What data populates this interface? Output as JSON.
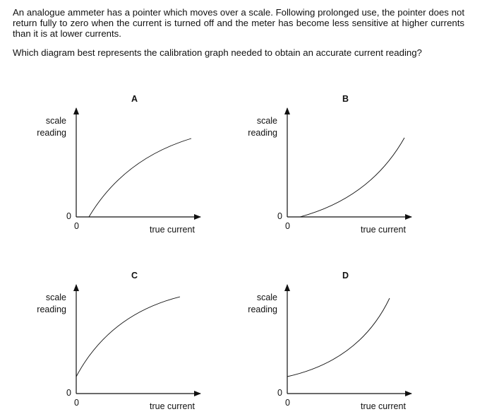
{
  "question": {
    "stem": "An analogue ammeter has a pointer which moves over a scale. Following prolonged use, the pointer does not return fully to zero when the current is turned off and the meter has become less sensitive at higher currents than it is at lower currents.",
    "prompt": "Which diagram best represents the calibration graph needed to obtain an accurate current reading?"
  },
  "options": [
    {
      "letter": "A",
      "y_label_1": "scale",
      "y_label_2": "reading",
      "x_label": "true current",
      "origin_y": "0",
      "origin_x": "0"
    },
    {
      "letter": "B",
      "y_label_1": "scale",
      "y_label_2": "reading",
      "x_label": "true current",
      "origin_y": "0",
      "origin_x": "0"
    },
    {
      "letter": "C",
      "y_label_1": "scale",
      "y_label_2": "reading",
      "x_label": "true current",
      "origin_y": "0",
      "origin_x": "0"
    },
    {
      "letter": "D",
      "y_label_1": "scale",
      "y_label_2": "reading",
      "x_label": "true current",
      "origin_y": "0",
      "origin_x": "0"
    }
  ]
}
